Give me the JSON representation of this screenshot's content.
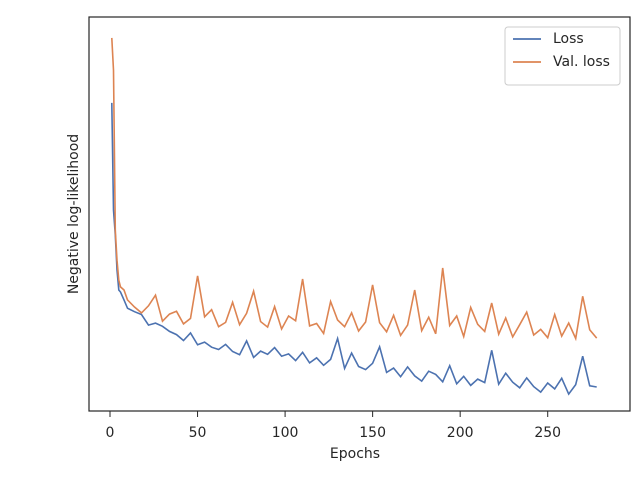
{
  "chart_data": {
    "type": "line",
    "xlabel": "Epochs",
    "ylabel": "Negative log-likelihood",
    "x": [
      1,
      2,
      3,
      4,
      5,
      6,
      8,
      10,
      14,
      18,
      22,
      26,
      30,
      34,
      38,
      42,
      46,
      50,
      54,
      58,
      62,
      66,
      70,
      74,
      78,
      82,
      86,
      90,
      94,
      98,
      102,
      106,
      110,
      114,
      118,
      122,
      126,
      130,
      134,
      138,
      142,
      146,
      150,
      154,
      158,
      162,
      166,
      170,
      174,
      178,
      182,
      186,
      190,
      194,
      198,
      202,
      206,
      210,
      214,
      218,
      222,
      226,
      230,
      234,
      238,
      242,
      246,
      250,
      254,
      258,
      262,
      266,
      270,
      274,
      278
    ],
    "series": [
      {
        "name": "Loss",
        "color": "#4c72b0",
        "values": [
          78.2,
          51,
          44.7,
          35.8,
          30.7,
          30.2,
          28.2,
          26.1,
          25.2,
          24.5,
          21.8,
          22.3,
          21.5,
          20.2,
          19.4,
          17.9,
          19.8,
          16.8,
          17.5,
          16.2,
          15.6,
          16.9,
          15.1,
          14.3,
          17.8,
          13.6,
          15.2,
          14.4,
          16.1,
          13.9,
          14.5,
          12.8,
          14.9,
          12.2,
          13.5,
          11.6,
          13.1,
          18.4,
          10.8,
          14.7,
          11.3,
          10.5,
          12.1,
          16.3,
          9.8,
          10.9,
          8.7,
          11.2,
          8.9,
          7.6,
          10.1,
          9.3,
          7.4,
          11.5,
          6.9,
          8.8,
          6.5,
          8.1,
          7.2,
          15.4,
          6.8,
          9.6,
          7.3,
          5.9,
          8.4,
          6.2,
          4.8,
          7.1,
          5.6,
          8.3,
          4.3,
          6.7,
          13.9,
          6.4,
          6.1
        ]
      },
      {
        "name": "Val. loss",
        "color": "#dd8452",
        "values": [
          94.7,
          86.5,
          45.9,
          38.3,
          33.2,
          31.5,
          30.7,
          28.2,
          26.4,
          24.9,
          26.7,
          29.4,
          22.8,
          24.6,
          25.3,
          22.1,
          23.5,
          34.3,
          23.9,
          25.7,
          21.4,
          22.5,
          27.6,
          21.9,
          24.8,
          30.4,
          22.7,
          21.3,
          26.5,
          20.8,
          24.1,
          22.9,
          33.5,
          21.6,
          22.2,
          19.7,
          27.8,
          23.1,
          21.4,
          24.9,
          20.3,
          22.6,
          32.0,
          22.4,
          20.1,
          24.3,
          19.2,
          21.8,
          30.7,
          20.4,
          23.8,
          19.6,
          36.3,
          21.7,
          24.1,
          18.9,
          26.3,
          22.0,
          20.2,
          27.4,
          19.5,
          23.6,
          18.8,
          21.9,
          25.1,
          19.3,
          20.7,
          18.6,
          24.5,
          19.0,
          22.3,
          18.4,
          29.1,
          20.6,
          18.5
        ]
      }
    ],
    "xlim": [
      -12,
      297
    ],
    "xticks": [
      0,
      50,
      100,
      150,
      200,
      250
    ],
    "ylim": [
      0,
      100
    ],
    "legend": "upper right",
    "grid": false
  }
}
